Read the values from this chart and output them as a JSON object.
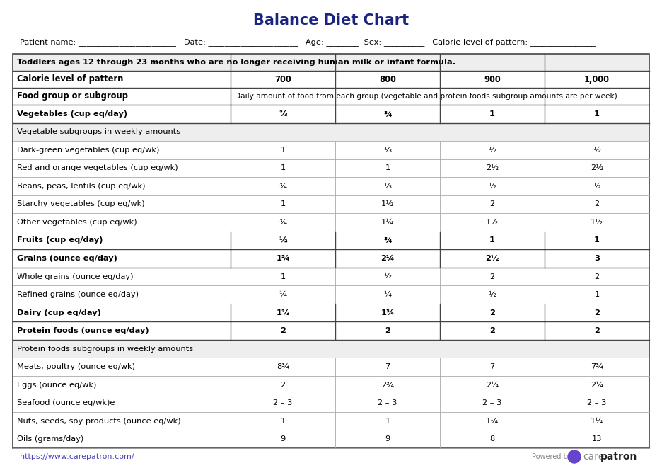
{
  "title": "Balance Diet Chart",
  "title_color": "#1a237e",
  "footer_url": "https://www.carepatron.com/",
  "table": {
    "header_note": "Toddlers ages 12 through 23 months who are no longer receiving human milk or infant formula.",
    "food_group_label": "Food group or subgroup",
    "food_group_note": "Daily amount of food from each group (vegetable and protein foods subgroup amounts are per week).",
    "rows": [
      {
        "label": "Vegetables (cup eq/day)",
        "values": [
          "⅔",
          "¾",
          "1",
          "1"
        ],
        "bold": true,
        "section_header": false
      },
      {
        "label": "Vegetable subgroups in weekly amounts",
        "values": [
          "",
          "",
          "",
          ""
        ],
        "bold": false,
        "section_header": true
      },
      {
        "label": "Dark-green vegetables (cup eq/wk)",
        "values": [
          "1",
          "⅓",
          "½",
          "½"
        ],
        "bold": false,
        "section_header": false
      },
      {
        "label": "Red and orange vegetables (cup eq/wk)",
        "values": [
          "1",
          "1",
          "2½",
          "2½"
        ],
        "bold": false,
        "section_header": false
      },
      {
        "label": "Beans, peas, lentils (cup eq/wk)",
        "values": [
          "¾",
          "⅓",
          "½",
          "½"
        ],
        "bold": false,
        "section_header": false
      },
      {
        "label": "Starchy vegetables (cup eq/wk)",
        "values": [
          "1",
          "1½",
          "2",
          "2"
        ],
        "bold": false,
        "section_header": false
      },
      {
        "label": "Other vegetables (cup eq/wk)",
        "values": [
          "¾",
          "1¼",
          "1½",
          "1½"
        ],
        "bold": false,
        "section_header": false
      },
      {
        "label": "Fruits (cup eq/day)",
        "values": [
          "½",
          "¾",
          "1",
          "1"
        ],
        "bold": true,
        "section_header": false
      },
      {
        "label": "Grains (ounce eq/day)",
        "values": [
          "1¾",
          "2¼",
          "2½",
          "3"
        ],
        "bold": true,
        "section_header": false
      },
      {
        "label": "Whole grains (ounce eq/day)",
        "values": [
          "1",
          "½",
          "2",
          "2"
        ],
        "bold": false,
        "section_header": false
      },
      {
        "label": "Refined grains (ounce eq/day)",
        "values": [
          "¼",
          "¼",
          "½",
          "1"
        ],
        "bold": false,
        "section_header": false
      },
      {
        "label": "Dairy (cup eq/day)",
        "values": [
          "1⅔",
          "1¾",
          "2",
          "2"
        ],
        "bold": true,
        "section_header": false
      },
      {
        "label": "Protein foods (ounce eq/day)",
        "values": [
          "2",
          "2",
          "2",
          "2"
        ],
        "bold": true,
        "section_header": false
      },
      {
        "label": "Protein foods subgroups in weekly amounts",
        "values": [
          "",
          "",
          "",
          ""
        ],
        "bold": false,
        "section_header": true
      },
      {
        "label": "Meats, poultry (ounce eq/wk)",
        "values": [
          "8¾",
          "7",
          "7",
          "7¾"
        ],
        "bold": false,
        "section_header": false
      },
      {
        "label": "Eggs (ounce eq/wk)",
        "values": [
          "2",
          "2¾",
          "2¼",
          "2¼"
        ],
        "bold": false,
        "section_header": false
      },
      {
        "label": "Seafood (ounce eq/wk)e",
        "values": [
          "2 – 3",
          "2 – 3",
          "2 – 3",
          "2 – 3"
        ],
        "bold": false,
        "section_header": false
      },
      {
        "label": "Nuts, seeds, soy products (ounce eq/wk)",
        "values": [
          "1",
          "1",
          "1¼",
          "1¼"
        ],
        "bold": false,
        "section_header": false
      },
      {
        "label": "Oils (grams/day)",
        "values": [
          "9",
          "9",
          "8",
          "13"
        ],
        "bold": false,
        "section_header": false
      }
    ]
  }
}
